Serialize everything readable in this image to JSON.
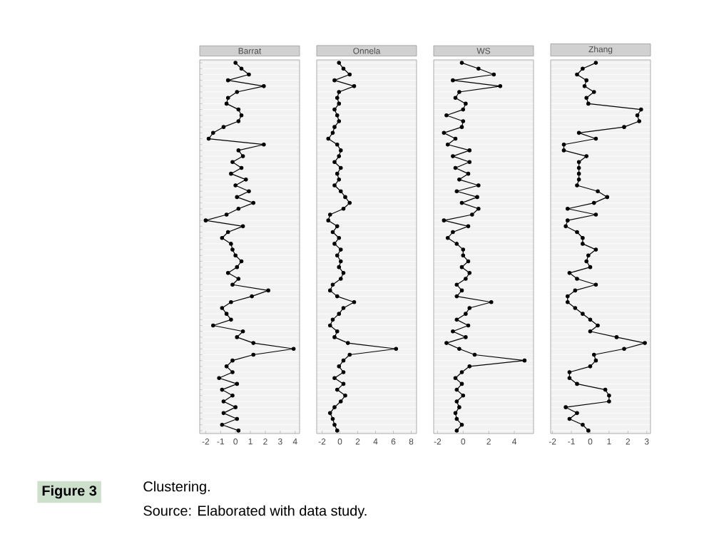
{
  "chart_data": [
    {
      "type": "line",
      "orientation": "horizontal",
      "title": "Barrat",
      "categories": [
        null,
        null,
        null,
        null,
        null,
        null,
        null,
        null,
        null,
        null,
        null,
        null,
        null,
        null,
        null,
        null,
        null,
        null,
        null,
        null,
        null,
        null,
        null,
        null,
        null,
        null,
        null,
        null,
        null,
        null,
        null,
        null,
        null,
        null,
        null,
        null,
        null,
        null,
        null,
        null,
        null,
        null,
        null,
        null,
        null,
        null,
        null,
        null,
        null,
        null,
        null,
        null,
        null,
        null,
        null,
        null,
        null,
        null,
        null,
        null,
        null,
        null,
        null,
        null
      ],
      "series": [
        {
          "color": "#000000",
          "values": [
            0,
            0.4,
            0.9,
            -0.5,
            1.9,
            0.1,
            -0.5,
            -0.6,
            0.2,
            0.4,
            0.2,
            -0.8,
            -1.5,
            -1.8,
            1.9,
            0.2,
            0.5,
            -0.2,
            0.4,
            -0.3,
            0.7,
            0,
            0.9,
            0.1,
            1.2,
            0.2,
            -0.6,
            -2,
            0.5,
            -0.5,
            -0.9,
            -0.3,
            -0.2,
            0,
            0.4,
            0.1,
            -0.5,
            0.2,
            -0.2,
            2.2,
            1.1,
            -0.3,
            -0.9,
            -0.6,
            -0.3,
            -1.5,
            0.5,
            0.1,
            1.2,
            3.9,
            1.2,
            -0.2,
            -0.6,
            -0.2,
            -1.1,
            0.1,
            -0.9,
            -0.2,
            -0.8,
            0,
            -0.8,
            0.1,
            -0.9,
            0.2
          ]
        }
      ],
      "xlim": [
        -2.4,
        4.3
      ],
      "xticks": [
        -2,
        -1,
        0,
        1,
        2,
        3,
        4
      ],
      "grid": "y",
      "marker": "circle",
      "line_style": "solid"
    },
    {
      "type": "line",
      "orientation": "horizontal",
      "title": "Onnela",
      "categories": [
        null,
        null,
        null,
        null,
        null,
        null,
        null,
        null,
        null,
        null,
        null,
        null,
        null,
        null,
        null,
        null,
        null,
        null,
        null,
        null,
        null,
        null,
        null,
        null,
        null,
        null,
        null,
        null,
        null,
        null,
        null,
        null,
        null,
        null,
        null,
        null,
        null,
        null,
        null,
        null,
        null,
        null,
        null,
        null,
        null,
        null,
        null,
        null,
        null,
        null,
        null,
        null,
        null,
        null,
        null,
        null,
        null,
        null,
        null,
        null,
        null,
        null,
        null,
        null
      ],
      "series": [
        {
          "color": "#000000",
          "values": [
            -0.1,
            0.4,
            1.1,
            -0.6,
            1.6,
            -0.1,
            -0.3,
            -0.1,
            -0.6,
            -0.3,
            -0.1,
            -0.6,
            -0.8,
            -1.3,
            -0.3,
            0.1,
            -0.1,
            -0.6,
            0.1,
            -0.3,
            -0.1,
            -0.6,
            0.1,
            0.6,
            1.1,
            0.4,
            -1.1,
            -1.3,
            -0.3,
            -0.8,
            -0.1,
            -0.6,
            0.1,
            -0.3,
            0.1,
            -0.1,
            0.4,
            0.1,
            -0.8,
            -1.1,
            -0.3,
            1.6,
            0.4,
            -0.1,
            -0.8,
            -1.1,
            -0.3,
            -0.6,
            0.9,
            6.3,
            1.1,
            0.4,
            -0.1,
            0.4,
            -0.6,
            0.4,
            -0.3,
            0.6,
            0.1,
            -0.6,
            -1.1,
            -0.8,
            -0.6,
            -0.3
          ]
        }
      ],
      "xlim": [
        -2.6,
        8.6
      ],
      "xticks": [
        -2,
        0,
        2,
        4,
        6,
        8
      ],
      "grid": "y",
      "marker": "circle",
      "line_style": "solid"
    },
    {
      "type": "line",
      "orientation": "horizontal",
      "title": "WS",
      "categories": [
        null,
        null,
        null,
        null,
        null,
        null,
        null,
        null,
        null,
        null,
        null,
        null,
        null,
        null,
        null,
        null,
        null,
        null,
        null,
        null,
        null,
        null,
        null,
        null,
        null,
        null,
        null,
        null,
        null,
        null,
        null,
        null,
        null,
        null,
        null,
        null,
        null,
        null,
        null,
        null,
        null,
        null,
        null,
        null,
        null,
        null,
        null,
        null,
        null,
        null,
        null,
        null,
        null,
        null,
        null,
        null,
        null,
        null,
        null,
        null,
        null,
        null,
        null,
        null
      ],
      "series": [
        {
          "color": "#000000",
          "values": [
            -0.1,
            1.2,
            2.4,
            -0.8,
            2.9,
            -0.3,
            -0.6,
            0.2,
            0,
            -1.3,
            0,
            -0.1,
            -1.5,
            -0.6,
            -1.2,
            0.5,
            -0.8,
            0.5,
            -0.6,
            0.4,
            -0.3,
            1.2,
            -0.5,
            1.1,
            -0.1,
            1.2,
            0.7,
            -1.5,
            0.4,
            -0.8,
            -1.2,
            -0.5,
            0,
            0,
            0.4,
            -0.1,
            0.5,
            0.2,
            -0.5,
            -0.1,
            -0.5,
            2.2,
            0.5,
            0.2,
            -0.5,
            0.4,
            -0.8,
            0.2,
            -1.3,
            -0.3,
            0.9,
            4.8,
            0.5,
            -0.1,
            -0.6,
            -0.1,
            -0.5,
            0,
            -0.5,
            -0.3,
            -0.6,
            -0.5,
            -0.1,
            -0.5
          ]
        }
      ],
      "xlim": [
        -2.3,
        5.5
      ],
      "xticks": [
        -2,
        0,
        2,
        4
      ],
      "grid": "y",
      "marker": "circle",
      "line_style": "solid"
    },
    {
      "type": "line",
      "orientation": "horizontal",
      "title": "Zhang",
      "categories": [
        null,
        null,
        null,
        null,
        null,
        null,
        null,
        null,
        null,
        null,
        null,
        null,
        null,
        null,
        null,
        null,
        null,
        null,
        null,
        null,
        null,
        null,
        null,
        null,
        null,
        null,
        null,
        null,
        null,
        null,
        null,
        null,
        null,
        null,
        null,
        null,
        null,
        null,
        null,
        null,
        null,
        null,
        null,
        null,
        null,
        null,
        null,
        null,
        null,
        null,
        null,
        null,
        null,
        null,
        null,
        null,
        null,
        null,
        null,
        null,
        null,
        null,
        null,
        null
      ],
      "series": [
        {
          "color": "#000000",
          "values": [
            0.3,
            -0.4,
            -0.7,
            -0.2,
            -0.3,
            0.2,
            -0.2,
            -0.1,
            2.7,
            2.5,
            2.6,
            1.8,
            -0.6,
            0.3,
            -1.4,
            -1.4,
            -0.2,
            -0.6,
            -0.6,
            -0.6,
            -0.6,
            -0.7,
            0.4,
            0.9,
            0.2,
            -1.2,
            0.3,
            -1.2,
            -1.3,
            -0.7,
            -0.4,
            -0.4,
            0.3,
            -0.1,
            -0.2,
            0,
            -1.1,
            -0.7,
            0.3,
            -0.8,
            -1.2,
            -1.2,
            -0.8,
            -0.4,
            0,
            0.4,
            0,
            1.4,
            2.9,
            1.8,
            0.2,
            0.3,
            0,
            -1.1,
            -1.1,
            -0.7,
            0.8,
            1,
            1,
            -1.3,
            -0.7,
            -1.1,
            -0.4,
            -0.1
          ]
        }
      ],
      "xlim": [
        -2.1,
        3.2
      ],
      "xticks": [
        -2,
        -1,
        0,
        1,
        2,
        3
      ],
      "grid": "y",
      "marker": "circle",
      "line_style": "solid"
    },
    {
      "type": "other",
      "annotations": [
        "Figure 3",
        "Clustering.",
        "Source: Elaborated with data study."
      ]
    }
  ]
}
